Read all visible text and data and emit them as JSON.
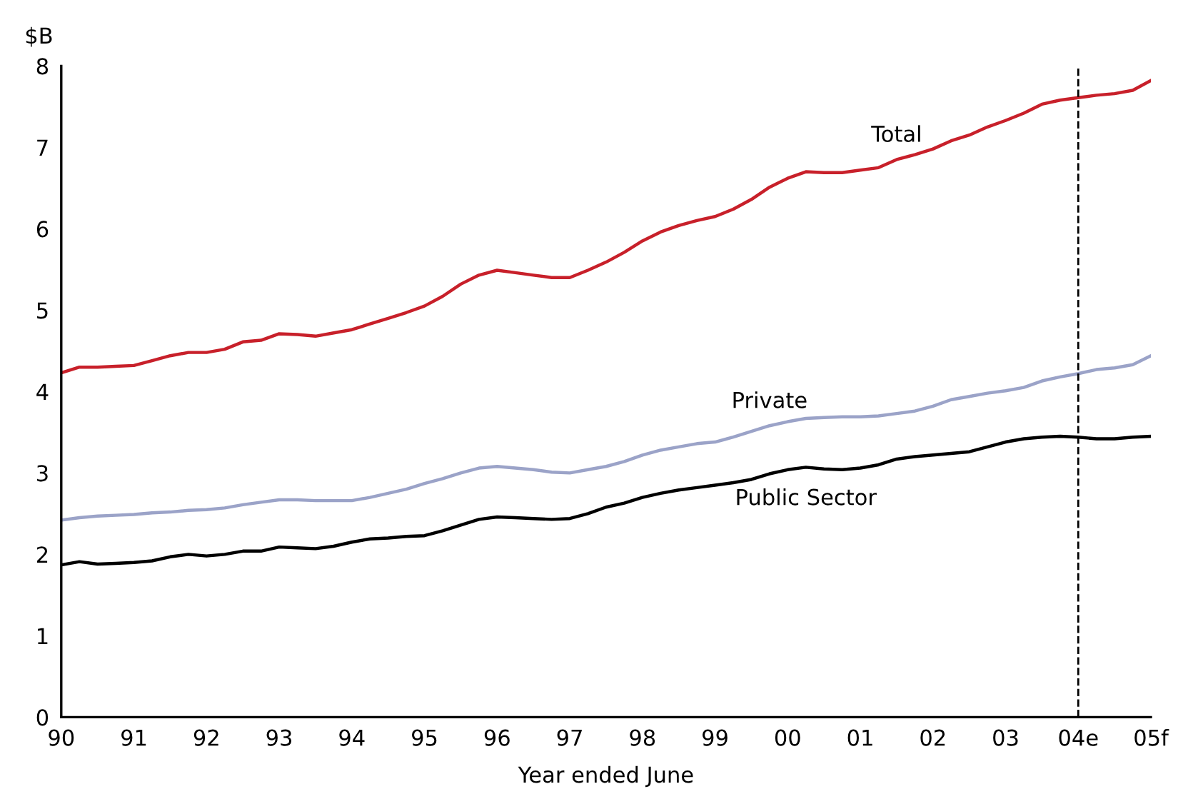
{
  "chart_data": {
    "type": "line",
    "xlabel": "Year ended June",
    "ylabel": "$B",
    "categories": [
      "90",
      null,
      null,
      null,
      "91",
      null,
      null,
      null,
      "92",
      null,
      null,
      null,
      "93",
      null,
      null,
      null,
      "94",
      null,
      null,
      null,
      "95",
      null,
      null,
      null,
      "96",
      null,
      null,
      null,
      "97",
      null,
      null,
      null,
      "98",
      null,
      null,
      null,
      "99",
      null,
      null,
      null,
      "00",
      null,
      null,
      null,
      "01",
      null,
      null,
      null,
      "02",
      null,
      null,
      null,
      "03",
      null,
      null,
      null,
      "04e",
      null,
      null,
      null,
      "05f"
    ],
    "series": [
      {
        "name": "Total",
        "color": "#c8202a",
        "values": [
          4.23,
          4.3,
          4.3,
          4.31,
          4.32,
          4.38,
          4.44,
          4.48,
          4.48,
          4.52,
          4.61,
          4.63,
          4.71,
          4.7,
          4.68,
          4.72,
          4.76,
          4.83,
          4.9,
          4.97,
          5.05,
          5.17,
          5.32,
          5.43,
          5.49,
          5.46,
          5.43,
          5.4,
          5.4,
          5.49,
          5.59,
          5.71,
          5.85,
          5.96,
          6.04,
          6.1,
          6.15,
          6.24,
          6.36,
          6.51,
          6.62,
          6.7,
          6.69,
          6.69,
          6.72,
          6.75,
          6.85,
          6.91,
          6.98,
          7.08,
          7.15,
          7.25,
          7.33,
          7.42,
          7.53,
          7.58,
          7.61,
          7.64,
          7.66,
          7.7,
          7.82
        ]
      },
      {
        "name": "Private",
        "color": "#9ba3c8",
        "values": [
          2.42,
          2.45,
          2.47,
          2.48,
          2.49,
          2.51,
          2.52,
          2.54,
          2.55,
          2.57,
          2.61,
          2.64,
          2.67,
          2.67,
          2.66,
          2.66,
          2.66,
          2.7,
          2.75,
          2.8,
          2.87,
          2.93,
          3.0,
          3.06,
          3.08,
          3.06,
          3.04,
          3.01,
          3.0,
          3.04,
          3.08,
          3.14,
          3.22,
          3.28,
          3.32,
          3.36,
          3.38,
          3.44,
          3.51,
          3.58,
          3.63,
          3.67,
          3.68,
          3.69,
          3.69,
          3.7,
          3.73,
          3.76,
          3.82,
          3.9,
          3.94,
          3.98,
          4.01,
          4.05,
          4.13,
          4.18,
          4.22,
          4.27,
          4.29,
          4.33,
          4.44
        ]
      },
      {
        "name": "Public Sector",
        "color": "#000000",
        "values": [
          1.87,
          1.91,
          1.88,
          1.89,
          1.9,
          1.92,
          1.97,
          2.0,
          1.98,
          2.0,
          2.04,
          2.04,
          2.09,
          2.08,
          2.07,
          2.1,
          2.15,
          2.19,
          2.2,
          2.22,
          2.23,
          2.29,
          2.36,
          2.43,
          2.46,
          2.45,
          2.44,
          2.43,
          2.44,
          2.5,
          2.58,
          2.63,
          2.7,
          2.75,
          2.79,
          2.82,
          2.85,
          2.88,
          2.92,
          2.99,
          3.04,
          3.07,
          3.05,
          3.04,
          3.06,
          3.1,
          3.17,
          3.2,
          3.22,
          3.24,
          3.26,
          3.32,
          3.38,
          3.42,
          3.44,
          3.45,
          3.44,
          3.42,
          3.42,
          3.44,
          3.45
        ]
      }
    ],
    "ylim": [
      0,
      8
    ],
    "yticks": [
      0,
      1,
      2,
      3,
      4,
      5,
      6,
      7,
      8
    ],
    "ref_lines": [
      {
        "axis": "x",
        "value": "04e",
        "color": "#000000",
        "line_style": "dashed"
      }
    ],
    "grid": false,
    "legend": false,
    "marker": "none",
    "line_style": "solid"
  }
}
